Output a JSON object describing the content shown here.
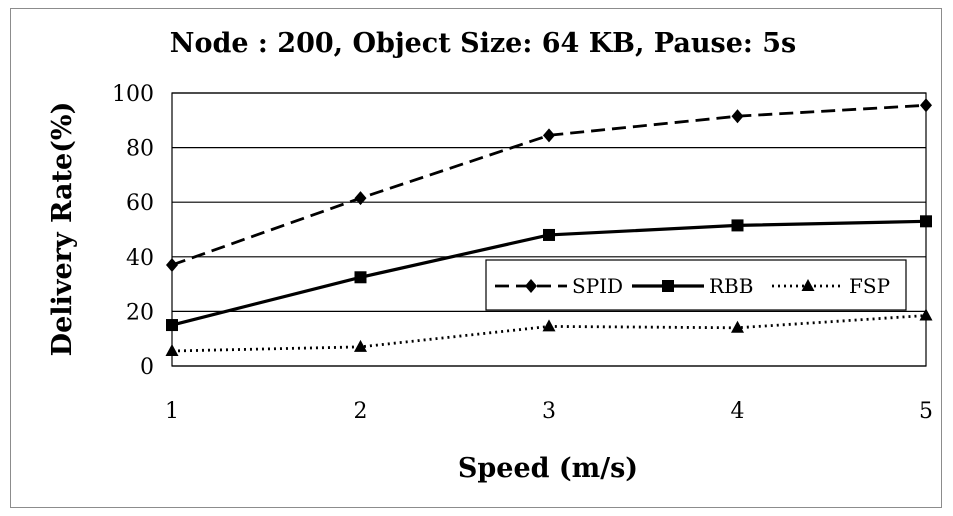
{
  "chart_data": {
    "type": "line",
    "title": "Node : 200, Object Size: 64 KB, Pause: 5s",
    "xlabel": "Speed (m/s)",
    "ylabel": "Delivery Rate(%)",
    "x": [
      1,
      2,
      3,
      4,
      5
    ],
    "x_ticks": [
      "1",
      "2",
      "3",
      "4",
      "5"
    ],
    "ylim": [
      0,
      100
    ],
    "y_ticks": [
      "0",
      "20",
      "40",
      "60",
      "80",
      "100"
    ],
    "grid": "horizontal",
    "legend_position": "center-right",
    "series": [
      {
        "name": "SPID",
        "values": [
          37,
          61.5,
          84.5,
          91.5,
          95.5
        ],
        "marker": "diamond",
        "line_style": "dashed",
        "color": "#000000"
      },
      {
        "name": "RBB",
        "values": [
          15,
          32.5,
          48,
          51.5,
          53
        ],
        "marker": "square",
        "line_style": "solid",
        "color": "#000000"
      },
      {
        "name": "FSP",
        "values": [
          5.5,
          7,
          14.5,
          14,
          18.5
        ],
        "marker": "triangle",
        "line_style": "dotted",
        "color": "#000000"
      }
    ]
  }
}
